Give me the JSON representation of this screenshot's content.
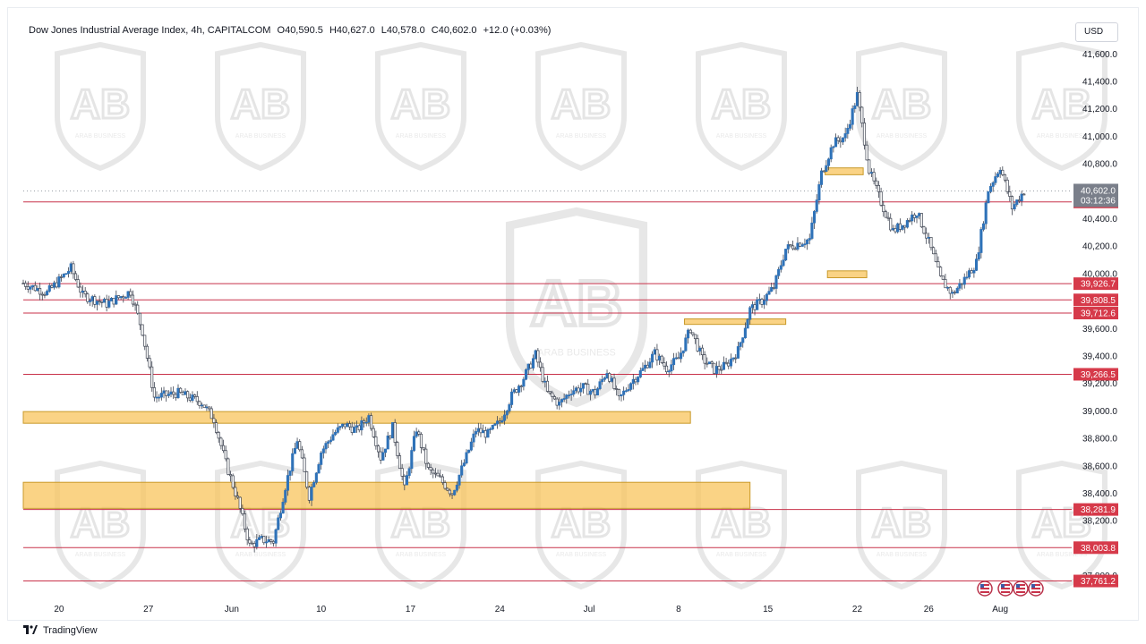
{
  "header": {
    "symbol": "Dow Jones Industrial Average Index, 4h, CAPITALCOM",
    "open": "O40,590.5",
    "high": "H40,627.0",
    "low": "L40,578.0",
    "close": "C40,602.0",
    "change": "+12.0 (+0.03%)"
  },
  "currency_label": "USD",
  "footer": {
    "brand": "TradingView",
    "logo": "tradingview-logo-icon"
  },
  "watermark": {
    "logo_text": "AB",
    "caption": "ARAB BUSINESS"
  },
  "colors": {
    "up": "#2f72b8",
    "down": "#2f72b8",
    "level_line": "#c8324a",
    "level_label_bg": "#d63a4a",
    "zone_fill": "#f8c45c",
    "zone_border": "#c99a2a",
    "current_price_bg": "#7a7f8a"
  },
  "chart_data": {
    "type": "candlestick",
    "title": "Dow Jones Industrial Average Index, 4h, CAPITALCOM",
    "ylim": [
      37680,
      41680
    ],
    "y_ticks": [
      "41,600.0",
      "41,400.0",
      "41,200.0",
      "41,000.0",
      "40,800.0",
      "40,400.0",
      "40,200.0",
      "40,000.0",
      "39,600.0",
      "39,400.0",
      "39,200.0",
      "39,000.0",
      "38,800.0",
      "38,600.0",
      "38,400.0",
      "38,200.0",
      "37,800.0"
    ],
    "x_ticks": [
      "20",
      "27",
      "Jun",
      "10",
      "17",
      "24",
      "Jul",
      "8",
      "15",
      "22",
      "26",
      "Aug"
    ],
    "x_tick_positions": [
      0,
      7.5,
      14.5,
      22,
      29.5,
      37,
      44.5,
      52,
      59.5,
      67,
      73,
      79
    ],
    "x_range": [
      -3,
      85
    ],
    "current_price": {
      "price": 40602,
      "label": "40,602.0",
      "countdown": "03:12:36"
    },
    "horizontal_levels": [
      {
        "price": 40521.8,
        "label": "40,521.8"
      },
      {
        "price": 39926.7,
        "label": "39,926.7"
      },
      {
        "price": 39808.5,
        "label": "39,808.5"
      },
      {
        "price": 39712.6,
        "label": "39,712.6"
      },
      {
        "price": 39266.5,
        "label": "39,266.5"
      },
      {
        "price": 38281.9,
        "label": "38,281.9"
      },
      {
        "price": 38003.8,
        "label": "38,003.8"
      },
      {
        "price": 37761.2,
        "label": "37,761.2"
      }
    ],
    "zones": [
      {
        "x0": -3,
        "x1": 53,
        "y0": 38910,
        "y1": 38995
      },
      {
        "x0": -3,
        "x1": 58,
        "y0": 38290,
        "y1": 38480
      },
      {
        "x0": 52.5,
        "x1": 61,
        "y0": 39630,
        "y1": 39670
      },
      {
        "x0": 64.5,
        "x1": 67.8,
        "y0": 39970,
        "y1": 40020
      },
      {
        "x0": 64.3,
        "x1": 67.5,
        "y0": 40720,
        "y1": 40770
      }
    ],
    "price_path": [
      [
        -3,
        39930
      ],
      [
        -1,
        39860
      ],
      [
        1,
        40040
      ],
      [
        2,
        39840
      ],
      [
        4,
        39780
      ],
      [
        6,
        39870
      ],
      [
        7,
        39580
      ],
      [
        8,
        39100
      ],
      [
        10,
        39130
      ],
      [
        12,
        39060
      ],
      [
        13,
        38940
      ],
      [
        14,
        38620
      ],
      [
        15,
        38350
      ],
      [
        16,
        38020
      ],
      [
        17,
        38060
      ],
      [
        18,
        38050
      ],
      [
        19,
        38450
      ],
      [
        20,
        38790
      ],
      [
        21,
        38380
      ],
      [
        22,
        38700
      ],
      [
        23,
        38830
      ],
      [
        24,
        38900
      ],
      [
        25,
        38860
      ],
      [
        26,
        38960
      ],
      [
        27,
        38660
      ],
      [
        28,
        38880
      ],
      [
        29,
        38430
      ],
      [
        30,
        38870
      ],
      [
        31,
        38570
      ],
      [
        32,
        38500
      ],
      [
        33,
        38400
      ],
      [
        34,
        38620
      ],
      [
        35,
        38860
      ],
      [
        36,
        38830
      ],
      [
        37,
        38920
      ],
      [
        38,
        39110
      ],
      [
        39,
        39240
      ],
      [
        40,
        39410
      ],
      [
        41,
        39130
      ],
      [
        42,
        39050
      ],
      [
        43,
        39150
      ],
      [
        44,
        39170
      ],
      [
        45,
        39130
      ],
      [
        46,
        39290
      ],
      [
        47,
        39080
      ],
      [
        48,
        39210
      ],
      [
        49,
        39300
      ],
      [
        50,
        39420
      ],
      [
        51,
        39310
      ],
      [
        52,
        39380
      ],
      [
        53,
        39600
      ],
      [
        54,
        39380
      ],
      [
        55,
        39300
      ],
      [
        56,
        39330
      ],
      [
        57,
        39440
      ],
      [
        58,
        39740
      ],
      [
        59,
        39800
      ],
      [
        60,
        39900
      ],
      [
        61,
        40180
      ],
      [
        62,
        40220
      ],
      [
        63,
        40250
      ],
      [
        64,
        40730
      ],
      [
        65,
        40950
      ],
      [
        66,
        41000
      ],
      [
        67,
        41300
      ],
      [
        68,
        40750
      ],
      [
        69,
        40520
      ],
      [
        70,
        40310
      ],
      [
        71,
        40370
      ],
      [
        72,
        40450
      ],
      [
        73,
        40230
      ],
      [
        74,
        39960
      ],
      [
        75,
        39850
      ],
      [
        76,
        39960
      ],
      [
        77,
        40080
      ],
      [
        78,
        40610
      ],
      [
        79,
        40780
      ],
      [
        80,
        40480
      ],
      [
        81,
        40602
      ]
    ]
  }
}
